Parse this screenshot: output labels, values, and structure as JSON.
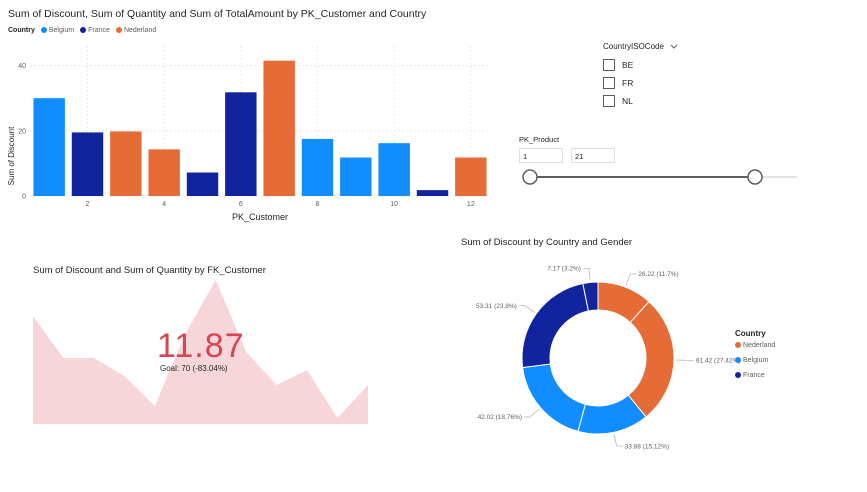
{
  "bar_chart": {
    "title": "Sum of Discount, Sum of Quantity and Sum of TotalAmount by PK_Customer and Country",
    "legend_title": "Country",
    "ylabel": "Sum of Discount",
    "xlabel": "PK_Customer"
  },
  "slicer_country": {
    "title": "CountryISOCode",
    "chevron_icon": "chevron-down-icon",
    "options": [
      "BE",
      "FR",
      "NL"
    ]
  },
  "slicer_product": {
    "title": "PK_Product",
    "min_value": "1",
    "max_value": "21"
  },
  "kpi": {
    "title": "Sum of Discount and Sum of Quantity by FK_Customer",
    "value": "11.87",
    "goal": "Goal: 70 (-83.04%)"
  },
  "donut_chart": {
    "title": "Sum of Discount by Country and Gender",
    "legend_title": "Country"
  },
  "colors": {
    "Belgium": "#118dff",
    "France": "#12239e",
    "Nederland": "#e66c37",
    "kpi_area": "#f7d6da",
    "kpi_value": "#d64550"
  },
  "chart_data": [
    {
      "type": "bar",
      "title": "Sum of Discount, Sum of Quantity and Sum of TotalAmount by PK_Customer and Country",
      "xlabel": "PK_Customer",
      "ylabel": "Sum of Discount",
      "categories": [
        1,
        2,
        3,
        4,
        5,
        6,
        7,
        8,
        9,
        10,
        11,
        12
      ],
      "x_ticks": [
        "2",
        "4",
        "6",
        "8",
        "10",
        "12"
      ],
      "y_ticks": [
        "0",
        "20",
        "40"
      ],
      "ylim": [
        0,
        46
      ],
      "values": [
        30,
        19.5,
        19.8,
        14.3,
        7.2,
        31.8,
        41.5,
        17.5,
        11.8,
        16.2,
        1.8,
        11.8
      ],
      "bar_country": [
        "Belgium",
        "France",
        "Nederland",
        "Nederland",
        "France",
        "France",
        "Nederland",
        "Belgium",
        "Belgium",
        "Belgium",
        "France",
        "Nederland"
      ],
      "legend": [
        "Belgium",
        "France",
        "Nederland"
      ],
      "legend_position": "top-left",
      "grid": true
    },
    {
      "type": "area",
      "title": "Sum of Discount and Sum of Quantity by FK_Customer",
      "values": [
        36,
        22,
        22,
        16,
        6,
        30,
        48,
        24,
        13,
        18,
        2,
        13
      ]
    },
    {
      "type": "pie",
      "donut": true,
      "title": "Sum of Discount by Country and Gender",
      "legend": [
        "Nederland",
        "Belgium",
        "France"
      ],
      "legend_position": "right",
      "slices": [
        {
          "label": "26.22 (11.7%)",
          "value": 26.22,
          "country": "Nederland"
        },
        {
          "label": "61.42 (27.42%)",
          "value": 61.42,
          "country": "Nederland"
        },
        {
          "label": "33.88 (15.12%)",
          "value": 33.88,
          "country": "Belgium"
        },
        {
          "label": "42.02 (18.76%)",
          "value": 42.02,
          "country": "Belgium"
        },
        {
          "label": "53.31 (23.8%)",
          "value": 53.31,
          "country": "France"
        },
        {
          "label": "7.17 (3.2%)",
          "value": 7.17,
          "country": "France"
        }
      ]
    }
  ]
}
